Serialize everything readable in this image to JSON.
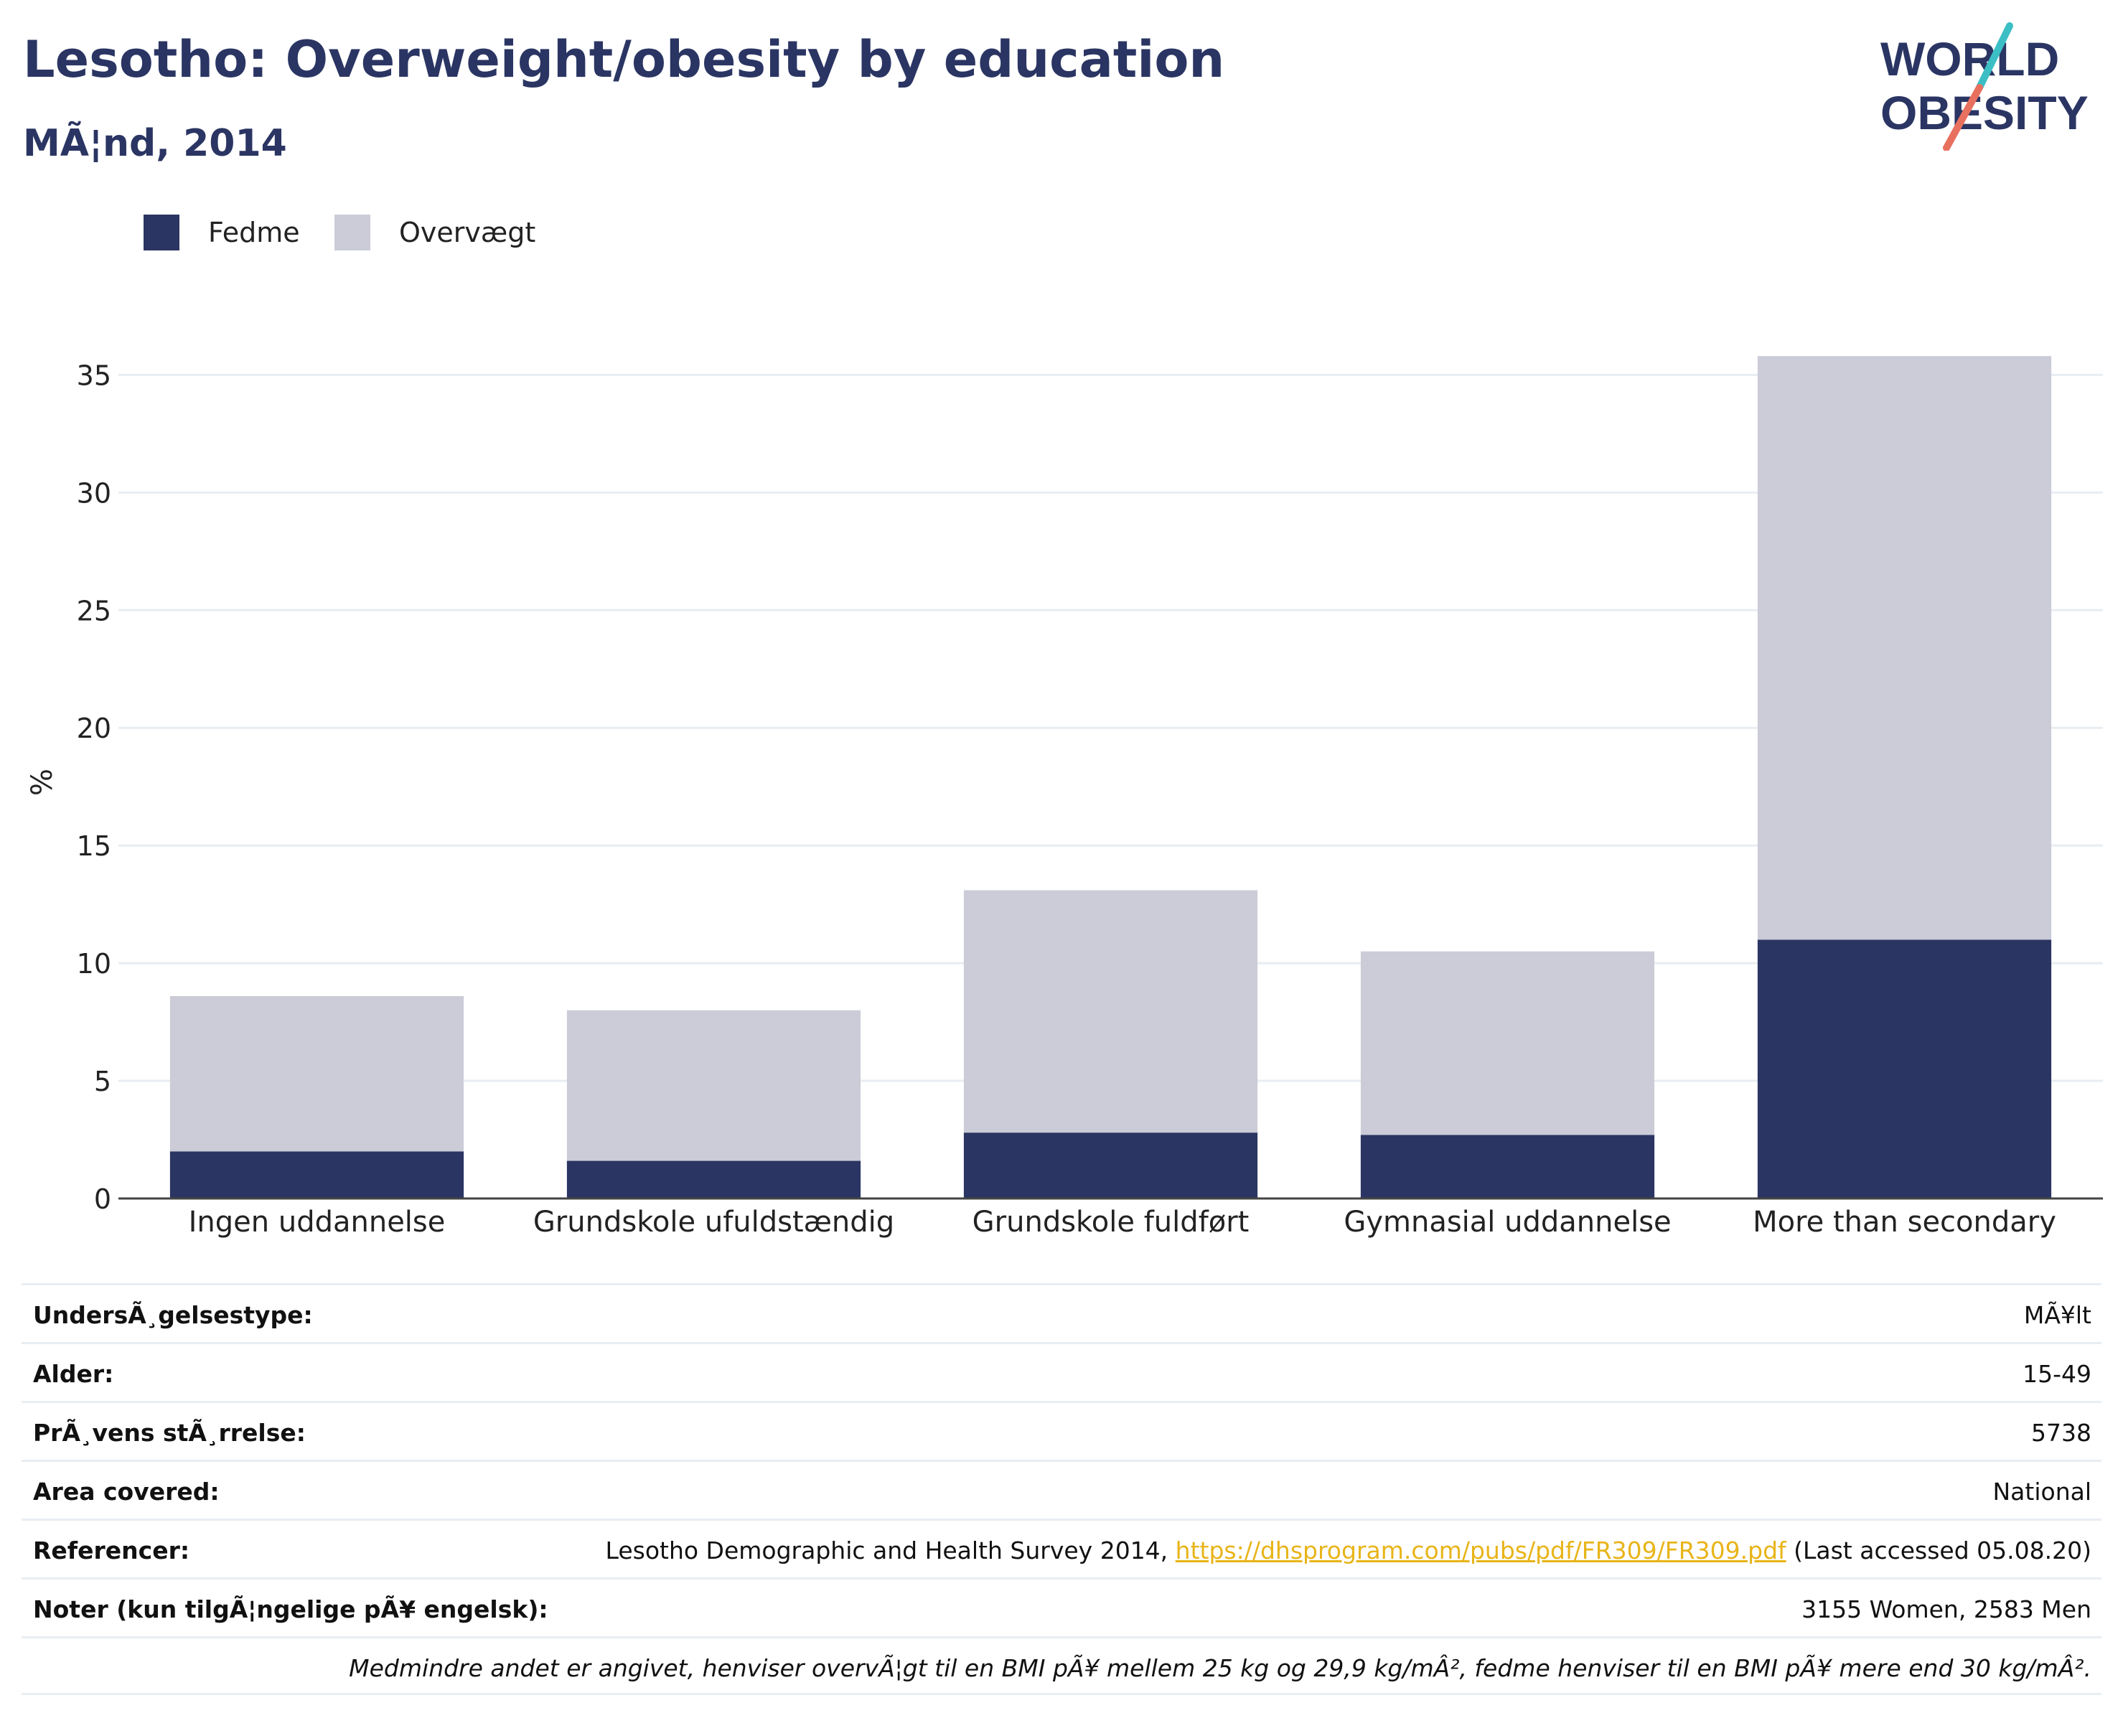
{
  "header": {
    "title": "Lesotho: Overweight/obesity by education",
    "subtitle": "MÃ¦nd, 2014"
  },
  "logo": {
    "line1": "WORLD",
    "line2": "OBESITY"
  },
  "colors": {
    "fedme": "#2a3563",
    "overvaegt": "#cbccd8",
    "title": "#2a3563",
    "link": "#e8b419",
    "logo_teal": "#3bbfc4",
    "logo_coral": "#e8705f"
  },
  "chart_data": {
    "type": "bar",
    "stacked": true,
    "ylabel": "%",
    "xlabel": "",
    "ylim": [
      0,
      35
    ],
    "yticks": [
      0,
      5,
      10,
      15,
      20,
      25,
      30,
      35
    ],
    "grid": true,
    "legend_placement": "top-left",
    "categories": [
      "Ingen uddannelse",
      "Grundskole ufuldstændig",
      "Grundskole fuldført",
      "Gymnasial uddannelse",
      "More than secondary"
    ],
    "series": [
      {
        "name": "Fedme",
        "values": [
          2.0,
          1.6,
          2.8,
          2.7,
          11.0
        ]
      },
      {
        "name": "Overvægt",
        "values": [
          6.6,
          6.4,
          10.3,
          7.8,
          24.8
        ]
      }
    ]
  },
  "meta": {
    "rows": [
      {
        "label": "UndersÃ¸gelsestype:",
        "value": "MÃ¥lt"
      },
      {
        "label": "Alder:",
        "value": "15-49"
      },
      {
        "label": "PrÃ¸vens stÃ¸rrelse:",
        "value": "5738"
      },
      {
        "label": "Area covered:",
        "value": "National"
      }
    ],
    "reference": {
      "label": "Referencer:",
      "prefix": "Lesotho Demographic and Health Survey 2014, ",
      "link": "https://dhsprogram.com/pubs/pdf/FR309/FR309.pdf",
      "suffix": " (Last accessed 05.08.20)"
    },
    "notes": {
      "label": "Noter (kun tilgÃ¦ngelige pÃ¥ engelsk):",
      "value": "3155 Women, 2583 Men"
    },
    "footnote": "Medmindre andet er angivet, henviser overvÃ¦gt til en BMI pÃ¥ mellem 25 kg og 29,9 kg/mÂ², fedme henviser til en BMI pÃ¥ mere end 30 kg/mÂ²."
  }
}
